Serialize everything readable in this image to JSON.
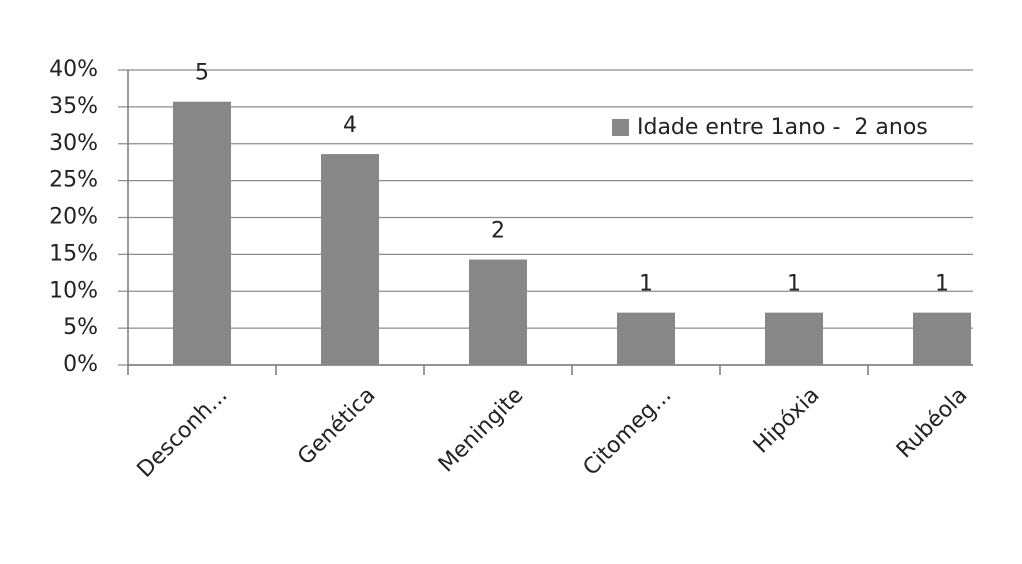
{
  "chart_data": {
    "type": "bar",
    "categories": [
      "Desconh...",
      "Genética",
      "Meningite",
      "Citomeg...",
      "Hipóxia",
      "Rubéola"
    ],
    "series": [
      {
        "name": "Idade entre 1ano -  2 anos",
        "color": "#878787",
        "values": [
          35.7,
          28.6,
          14.3,
          7.1,
          7.1,
          7.1
        ]
      }
    ],
    "counts": [
      5,
      4,
      2,
      1,
      1,
      1
    ],
    "ylim": [
      0,
      40
    ],
    "yticks": [
      {
        "value": 0,
        "label": "0%"
      },
      {
        "value": 5,
        "label": "5%"
      },
      {
        "value": 10,
        "label": "10%"
      },
      {
        "value": 15,
        "label": "15%"
      },
      {
        "value": 20,
        "label": "20%"
      },
      {
        "value": 25,
        "label": "25%"
      },
      {
        "value": 30,
        "label": "30%"
      },
      {
        "value": 35,
        "label": "35%"
      },
      {
        "value": 40,
        "label": "40%"
      }
    ],
    "grid": true,
    "legend": "top-right"
  }
}
